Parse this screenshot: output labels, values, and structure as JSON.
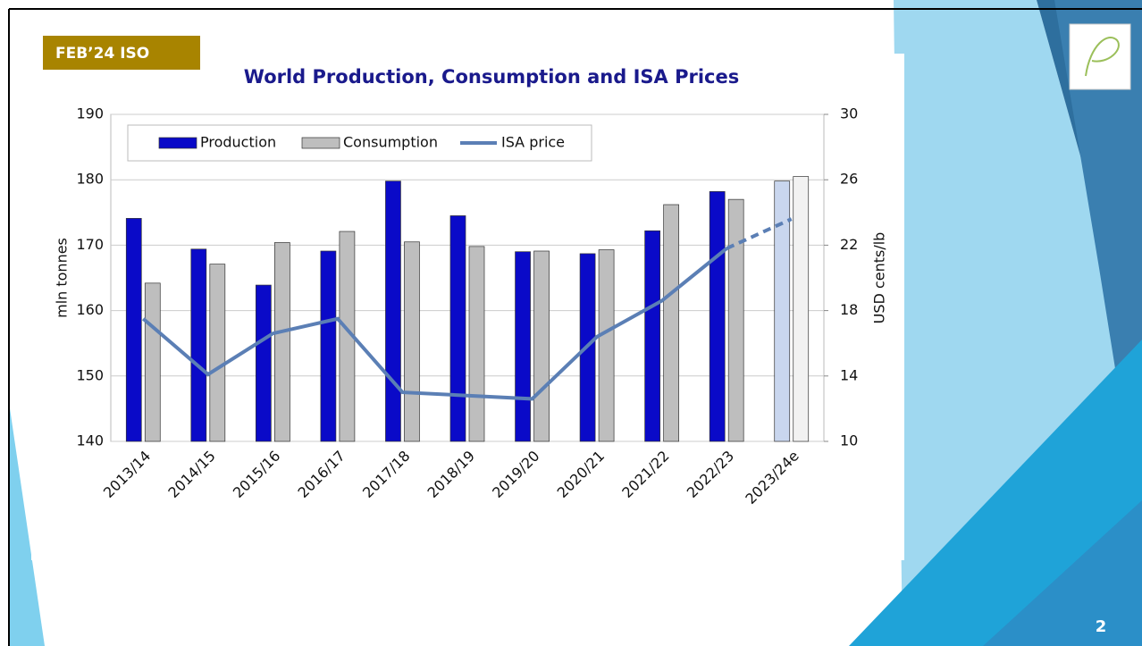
{
  "slide": {
    "badge": "FEB’24 ISO",
    "page_number": "2"
  },
  "chart_data": {
    "type": "bar_line",
    "title": "World Production, Consumption and ISA Prices",
    "y_label": "mln tonnes",
    "y2_label": "USD cents/lb",
    "categories": [
      "2013/14",
      "2014/15",
      "2015/16",
      "2016/17",
      "2017/18",
      "2018/19",
      "2019/20",
      "2020/21",
      "2021/22",
      "2022/23",
      "2023/24e"
    ],
    "series": [
      {
        "name": "Production",
        "type": "bar",
        "color": "#0a0ac8",
        "colors": [
          "#0a0ac8",
          "#0a0ac8",
          "#0a0ac8",
          "#0a0ac8",
          "#0a0ac8",
          "#0a0ac8",
          "#0a0ac8",
          "#0a0ac8",
          "#0a0ac8",
          "#0a0ac8",
          "#c9d6ee"
        ],
        "values": [
          174.1,
          169.4,
          163.9,
          169.1,
          179.8,
          174.5,
          169.0,
          168.7,
          172.2,
          178.2,
          179.8
        ]
      },
      {
        "name": "Consumption",
        "type": "bar",
        "color": "#bebebe",
        "colors": [
          "#bebebe",
          "#bebebe",
          "#bebebe",
          "#bebebe",
          "#bebebe",
          "#bebebe",
          "#bebebe",
          "#bebebe",
          "#bebebe",
          "#bebebe",
          "#f2f2f2"
        ],
        "values": [
          164.2,
          167.1,
          170.4,
          172.1,
          170.5,
          169.8,
          169.1,
          169.3,
          176.2,
          177.0,
          180.5
        ]
      },
      {
        "name": "ISA price",
        "type": "line",
        "axis": "y2",
        "color": "#5b7fb5",
        "dashed_segments": [
          9
        ],
        "values": [
          17.5,
          14.1,
          16.6,
          17.5,
          13.0,
          12.8,
          12.6,
          16.4,
          18.6,
          21.8,
          23.6
        ]
      }
    ],
    "ylim": [
      140,
      190
    ],
    "yticks": [
      140,
      150,
      160,
      170,
      180,
      190
    ],
    "y2lim": [
      10,
      30
    ],
    "y2ticks": [
      10,
      14,
      18,
      22,
      26,
      30
    ],
    "grid": true,
    "legend": "top-left"
  }
}
